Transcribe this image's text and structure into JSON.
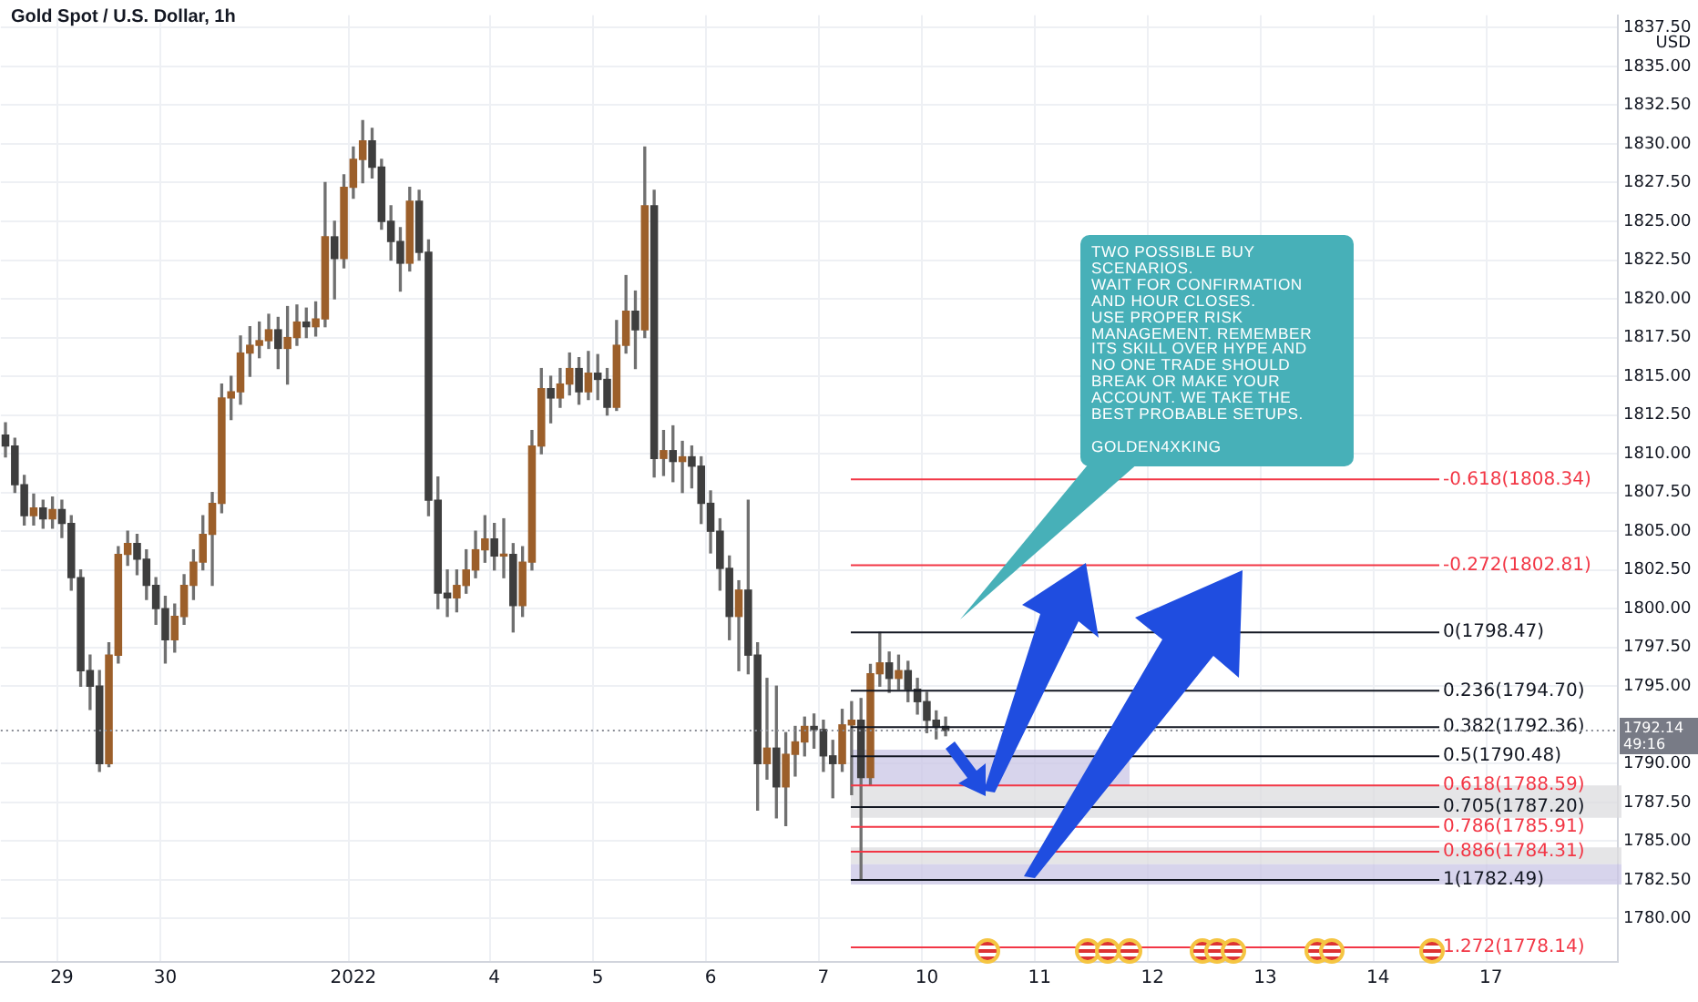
{
  "chart_data": {
    "type": "candlestick",
    "title": "Gold Spot / U.S. Dollar, 1h",
    "ylabel": "USD",
    "categories": [
      null,
      null,
      null,
      null,
      null,
      null,
      "29",
      null,
      null,
      null,
      null,
      null,
      null,
      null,
      null,
      null,
      null,
      "30",
      null,
      null,
      null,
      null,
      null,
      null,
      null,
      null,
      null,
      null,
      null,
      null,
      null,
      null,
      null,
      null,
      null,
      null,
      null,
      "2022",
      null,
      null,
      null,
      null,
      null,
      null,
      null,
      null,
      null,
      null,
      null,
      null,
      null,
      null,
      "4",
      null,
      null,
      null,
      null,
      null,
      null,
      null,
      null,
      null,
      null,
      "5",
      null,
      null,
      null,
      null,
      null,
      null,
      null,
      null,
      null,
      null,
      null,
      "6",
      null,
      null,
      null,
      null,
      null,
      null,
      null,
      null,
      null,
      null,
      null,
      "7",
      null,
      null,
      null,
      null,
      null,
      null,
      null,
      null,
      null,
      null,
      "10",
      null,
      null,
      null,
      null,
      null,
      null,
      null,
      null,
      null,
      null,
      null,
      "11",
      null,
      null,
      null,
      null,
      null,
      null,
      null,
      null,
      null,
      null,
      null,
      "12",
      null,
      null,
      null,
      null,
      null,
      null,
      null,
      null,
      null,
      null,
      null,
      "13",
      null,
      null,
      null,
      null,
      null,
      null,
      null,
      null,
      null,
      null,
      null,
      "14",
      null,
      null,
      null,
      null,
      null,
      null,
      null,
      null,
      null,
      null,
      null,
      "17",
      null,
      null,
      null,
      null,
      null,
      null,
      null,
      null,
      null,
      null,
      null,
      null,
      null
    ],
    "ohlc": [
      [
        1811.2,
        1812,
        1809.8,
        1810.5
      ],
      [
        1810.5,
        1811,
        1807.5,
        1808
      ],
      [
        1808,
        1808.6,
        1805.4,
        1806
      ],
      [
        1806,
        1807.4,
        1805.4,
        1806.5
      ],
      [
        1806.5,
        1807,
        1805.2,
        1805.8
      ],
      [
        1805.8,
        1807.2,
        1805.2,
        1806.4
      ],
      [
        1806.4,
        1807,
        1804.6,
        1805.5
      ],
      [
        1805.5,
        1806,
        1801.2,
        1802
      ],
      [
        1802,
        1802.5,
        1795,
        1796
      ],
      [
        1796,
        1797,
        1793.5,
        1795
      ],
      [
        1795,
        1796,
        1789.5,
        1790
      ],
      [
        1790,
        1797.8,
        1789.8,
        1797
      ],
      [
        1797,
        1804,
        1796.5,
        1803.5
      ],
      [
        1803.5,
        1805,
        1802.8,
        1804.2
      ],
      [
        1804.2,
        1804.8,
        1802.2,
        1803.2
      ],
      [
        1803.2,
        1803.8,
        1800.6,
        1801.5
      ],
      [
        1801.5,
        1802,
        1799,
        1800
      ],
      [
        1800,
        1800.8,
        1796.5,
        1798
      ],
      [
        1798,
        1800.3,
        1797.2,
        1799.5
      ],
      [
        1799.5,
        1802.2,
        1799,
        1801.5
      ],
      [
        1801.5,
        1803.8,
        1800.6,
        1803
      ],
      [
        1803,
        1806,
        1802.5,
        1804.8
      ],
      [
        1804.8,
        1807.5,
        1801.5,
        1806.8
      ],
      [
        1806.8,
        1814.5,
        1806.2,
        1813.6
      ],
      [
        1813.6,
        1815,
        1812.2,
        1814
      ],
      [
        1814,
        1817.6,
        1813.2,
        1816.5
      ],
      [
        1816.5,
        1818.2,
        1815,
        1817
      ],
      [
        1817,
        1818.5,
        1816.2,
        1817.3
      ],
      [
        1817.3,
        1819,
        1816.8,
        1818
      ],
      [
        1818,
        1818.8,
        1815.5,
        1816.8
      ],
      [
        1816.8,
        1819.5,
        1814.5,
        1817.5
      ],
      [
        1817.5,
        1819.6,
        1817,
        1818.5
      ],
      [
        1818.5,
        1819.4,
        1817.5,
        1818.2
      ],
      [
        1818.2,
        1819.8,
        1817.6,
        1818.7
      ],
      [
        1818.7,
        1827.5,
        1818.2,
        1824
      ],
      [
        1824,
        1825,
        1820,
        1822.6
      ],
      [
        1822.6,
        1828,
        1822,
        1827.2
      ],
      [
        1827.2,
        1829.8,
        1826.5,
        1829
      ],
      [
        1829,
        1831.5,
        1827.5,
        1830.2
      ],
      [
        1830.2,
        1831,
        1827.8,
        1828.5
      ],
      [
        1828.5,
        1829,
        1824.5,
        1825
      ],
      [
        1825,
        1826,
        1822.5,
        1823.7
      ],
      [
        1823.7,
        1824.6,
        1820.5,
        1822.3
      ],
      [
        1822.3,
        1827.2,
        1821.8,
        1826.3
      ],
      [
        1826.3,
        1827,
        1822.5,
        1823
      ],
      [
        1823,
        1823.8,
        1806,
        1807
      ],
      [
        1807,
        1808.5,
        1800,
        1801
      ],
      [
        1801,
        1802.5,
        1799.5,
        1800.7
      ],
      [
        1800.7,
        1802.5,
        1799.8,
        1801.5
      ],
      [
        1801.5,
        1803.8,
        1801,
        1802.5
      ],
      [
        1802.5,
        1805,
        1802,
        1803.8
      ],
      [
        1803.8,
        1806,
        1803,
        1804.5
      ],
      [
        1804.5,
        1805.5,
        1802.5,
        1803.4
      ],
      [
        1803.4,
        1805.8,
        1802,
        1803.5
      ],
      [
        1803.5,
        1804.2,
        1798.5,
        1800.2
      ],
      [
        1800.2,
        1804,
        1799.5,
        1803
      ],
      [
        1803,
        1811.5,
        1802.5,
        1810.5
      ],
      [
        1810.5,
        1815.5,
        1810,
        1814.2
      ],
      [
        1814.2,
        1815,
        1812,
        1813.6
      ],
      [
        1813.6,
        1815.5,
        1813,
        1814.5
      ],
      [
        1814.5,
        1816.5,
        1813.8,
        1815.5
      ],
      [
        1815.5,
        1816.2,
        1813.2,
        1814
      ],
      [
        1814,
        1816.6,
        1813.5,
        1815.2
      ],
      [
        1815.2,
        1816.4,
        1813.5,
        1814.8
      ],
      [
        1814.8,
        1815.5,
        1812.5,
        1813
      ],
      [
        1813,
        1818.6,
        1812.8,
        1817
      ],
      [
        1817,
        1821.5,
        1816.5,
        1819.2
      ],
      [
        1819.2,
        1820.5,
        1815.5,
        1818
      ],
      [
        1818,
        1829.8,
        1817.5,
        1826
      ],
      [
        1826,
        1827,
        1808.5,
        1809.7
      ],
      [
        1809.7,
        1811.5,
        1808.6,
        1810.2
      ],
      [
        1810.2,
        1811.8,
        1808.2,
        1809.5
      ],
      [
        1809.5,
        1810.8,
        1807.5,
        1809.8
      ],
      [
        1809.8,
        1810.5,
        1807.8,
        1809.2
      ],
      [
        1809.2,
        1809.8,
        1805.5,
        1806.8
      ],
      [
        1806.8,
        1807.6,
        1803.6,
        1805
      ],
      [
        1805,
        1805.8,
        1801.2,
        1802.6
      ],
      [
        1802.6,
        1803.4,
        1798,
        1799.5
      ],
      [
        1799.5,
        1801.8,
        1796,
        1801.2
      ],
      [
        1801.2,
        1807,
        1795.8,
        1797
      ],
      [
        1797,
        1797.8,
        1787,
        1790
      ],
      [
        1790,
        1795.5,
        1789,
        1791
      ],
      [
        1791,
        1795,
        1786.5,
        1788.5
      ],
      [
        1788.5,
        1792,
        1786,
        1790.6
      ],
      [
        1790.6,
        1792.4,
        1789.2,
        1791.4
      ],
      [
        1791.4,
        1793,
        1790.5,
        1792.4
      ],
      [
        1792.4,
        1793.2,
        1791,
        1792.2
      ],
      [
        1792.2,
        1792.8,
        1789.5,
        1790.5
      ],
      [
        1790.5,
        1791.5,
        1787.8,
        1790
      ],
      [
        1790,
        1793.5,
        1789.5,
        1792.5
      ],
      [
        1792.5,
        1794,
        1788,
        1792.8
      ],
      [
        1792.8,
        1794.2,
        1782.49,
        1789.1
      ],
      [
        1789.1,
        1796.4,
        1788.6,
        1795.8
      ],
      [
        1795.8,
        1798.47,
        1795,
        1796.5
      ],
      [
        1796.5,
        1797.2,
        1794.6,
        1795.5
      ],
      [
        1795.5,
        1797,
        1794.8,
        1796
      ],
      [
        1796,
        1796.6,
        1794,
        1794.8
      ],
      [
        1794.8,
        1795.5,
        1793.2,
        1794
      ],
      [
        1794,
        1794.6,
        1792,
        1792.8
      ],
      [
        1792.8,
        1793.4,
        1791.6,
        1792.4
      ],
      [
        1792.4,
        1793,
        1791.8,
        1792.14
      ],
      null,
      null,
      null,
      null,
      null,
      null,
      null,
      null,
      null,
      null,
      null,
      null,
      null,
      null,
      null,
      null,
      null,
      null,
      null,
      null,
      null,
      null,
      null,
      null,
      null,
      null,
      null,
      null,
      null,
      null,
      null,
      null,
      null,
      null,
      null,
      null,
      null,
      null,
      null,
      null,
      null,
      null,
      null,
      null,
      null,
      null,
      null,
      null,
      null,
      null,
      null,
      null,
      null,
      null,
      null,
      null,
      null,
      null,
      null,
      null,
      null,
      null,
      null,
      null,
      null,
      null,
      null,
      null,
      null,
      null,
      null
    ],
    "ylim": [
      1777.2,
      1838.3
    ],
    "yticks": [
      {
        "value": 1780,
        "label": "1780.00"
      },
      {
        "value": 1782.5,
        "label": "1782.50"
      },
      {
        "value": 1785,
        "label": "1785.00"
      },
      {
        "value": 1787.5,
        "label": "1787.50"
      },
      {
        "value": 1790,
        "label": "1790.00"
      },
      {
        "value": 1795,
        "label": "1795.00"
      },
      {
        "value": 1797.5,
        "label": "1797.50"
      },
      {
        "value": 1800,
        "label": "1800.00"
      },
      {
        "value": 1802.5,
        "label": "1802.50"
      },
      {
        "value": 1805,
        "label": "1805.00"
      },
      {
        "value": 1807.5,
        "label": "1807.50"
      },
      {
        "value": 1810,
        "label": "1810.00"
      },
      {
        "value": 1812.5,
        "label": "1812.50"
      },
      {
        "value": 1815,
        "label": "1815.00"
      },
      {
        "value": 1817.5,
        "label": "1817.50"
      },
      {
        "value": 1820,
        "label": "1820.00"
      },
      {
        "value": 1822.5,
        "label": "1822.50"
      },
      {
        "value": 1825,
        "label": "1825.00"
      },
      {
        "value": 1827.5,
        "label": "1827.50"
      },
      {
        "value": 1830,
        "label": "1830.00"
      },
      {
        "value": 1832.5,
        "label": "1832.50"
      },
      {
        "value": 1835,
        "label": "1835.00"
      },
      {
        "value": 1837.5,
        "label": "1837.50"
      }
    ],
    "grid": true,
    "bands": [
      {
        "axis": "y",
        "from": 1788.59,
        "to": 1790.9,
        "color": "#c9c6e6"
      },
      {
        "axis": "y",
        "from": 1786.5,
        "to": 1788.59,
        "color": "#dcdcdf"
      },
      {
        "axis": "y",
        "from": 1783.5,
        "to": 1784.6,
        "color": "#dcdcdf"
      },
      {
        "axis": "y",
        "from": 1782.2,
        "to": 1783.5,
        "color": "#c9c6e6"
      }
    ],
    "ref_lines": [
      {
        "axis": "y",
        "value": 1808.34,
        "label": "-0.618(1808.34)",
        "color": "#f23645"
      },
      {
        "axis": "y",
        "value": 1802.81,
        "label": "-0.272(1802.81)",
        "color": "#f23645"
      },
      {
        "axis": "y",
        "value": 1798.47,
        "label": "0(1798.47)",
        "color": "#131722"
      },
      {
        "axis": "y",
        "value": 1794.7,
        "label": "0.236(1794.70)",
        "color": "#131722"
      },
      {
        "axis": "y",
        "value": 1792.36,
        "label": "0.382(1792.36)",
        "color": "#131722"
      },
      {
        "axis": "y",
        "value": 1790.48,
        "label": "0.5(1790.48)",
        "color": "#131722"
      },
      {
        "axis": "y",
        "value": 1788.59,
        "label": "0.618(1788.59)",
        "color": "#f23645"
      },
      {
        "axis": "y",
        "value": 1787.2,
        "label": "0.705(1787.20)",
        "color": "#131722"
      },
      {
        "axis": "y",
        "value": 1785.91,
        "label": "0.786(1785.91)",
        "color": "#f23645"
      },
      {
        "axis": "y",
        "value": 1784.31,
        "label": "0.886(1784.31)",
        "color": "#f23645"
      },
      {
        "axis": "y",
        "value": 1782.49,
        "label": "1(1782.49)",
        "color": "#131722"
      },
      {
        "axis": "y",
        "value": 1778.14,
        "label": "1.272(1778.14)",
        "color": "#f23645"
      },
      {
        "axis": "y",
        "value": 1792.14,
        "label": "1792.14",
        "color": "#8a8d96",
        "line_style": "dotted"
      }
    ],
    "annotations": [
      "TWO POSSIBLE BUY\nSCENARIOS.\nWAIT FOR CONFIRMATION\nAND HOUR CLOSES.\nUSE PROPER RISK\nMANAGEMENT. REMEMBER\nITS SKILL OVER HYPE AND\nNO ONE TRADE SHOULD\nBREAK OR MAKE YOUR\nACCOUNT. WE TAKE THE\nBEST PROBABLE SETUPS.\n\nGOLDEN4XKING",
      "49:16"
    ]
  }
}
